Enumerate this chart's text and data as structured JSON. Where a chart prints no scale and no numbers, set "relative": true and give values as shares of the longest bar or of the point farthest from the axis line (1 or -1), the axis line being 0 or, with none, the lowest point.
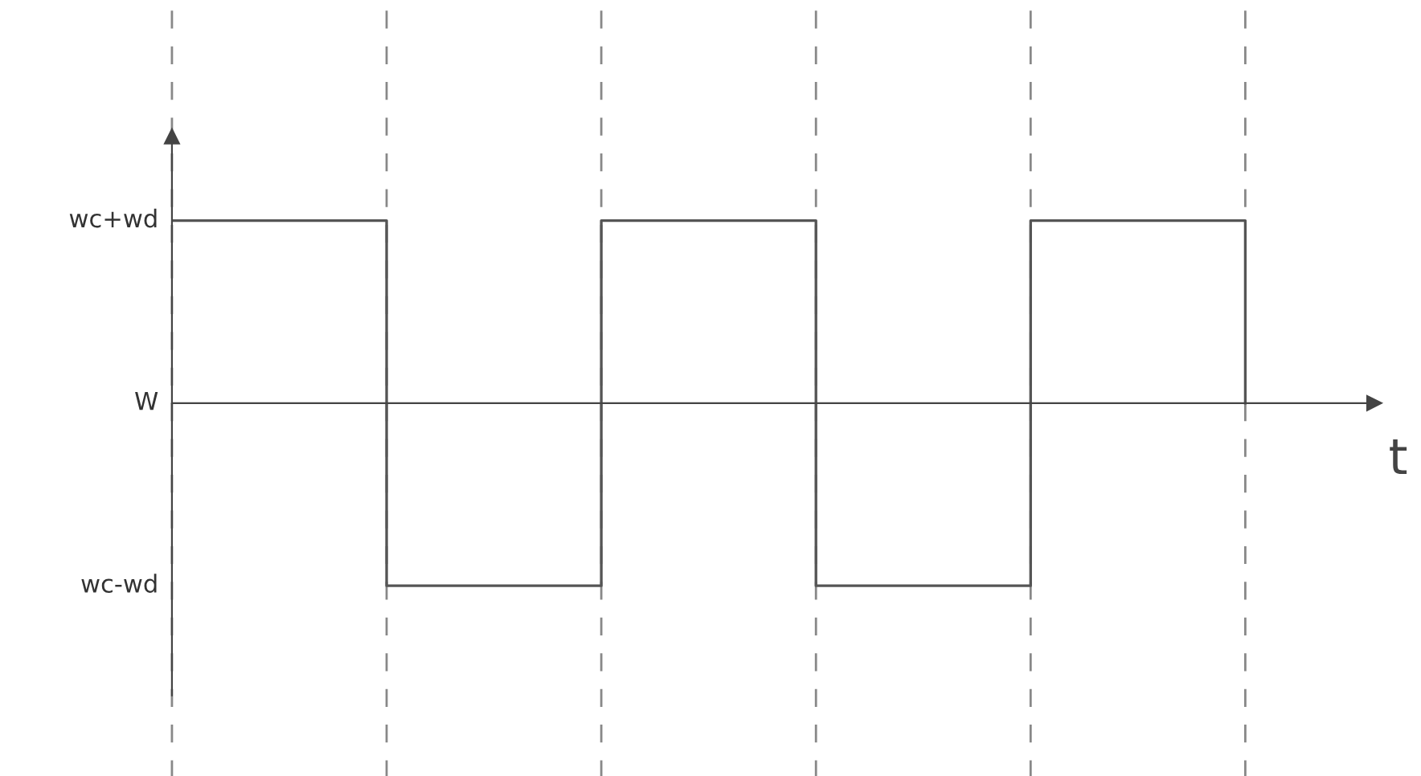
{
  "chart_data": {
    "type": "step",
    "xlabel": "t",
    "relative": true,
    "categories": [
      null,
      null,
      null,
      null,
      null,
      null
    ],
    "series": [
      {
        "color": "#555555",
        "values": [
          1,
          -1,
          1,
          -1,
          1,
          0
        ]
      }
    ],
    "annotations": [
      "wc+wd",
      "W",
      "wc-wd"
    ],
    "grid": "x",
    "legend": false,
    "marker": "none",
    "line_style": "solid"
  }
}
